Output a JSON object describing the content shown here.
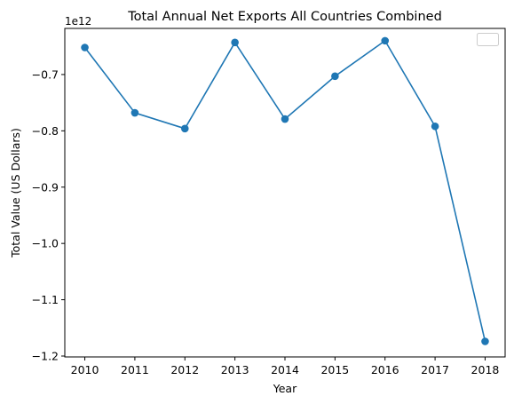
{
  "chart_data": {
    "type": "line",
    "title": "Total Annual Net Exports All Countries Combined",
    "xlabel": "Year",
    "ylabel": "Total Value (US Dollars)",
    "y_offset_label": "1e12",
    "x": [
      2010,
      2011,
      2012,
      2013,
      2014,
      2015,
      2016,
      2017,
      2018
    ],
    "x_tick_labels": [
      "2010",
      "2011",
      "2012",
      "2013",
      "2014",
      "2015",
      "2016",
      "2017",
      "2018"
    ],
    "y_ticks": [
      -0.7,
      -0.8,
      -0.9,
      -1.0,
      -1.1,
      -1.2
    ],
    "y_tick_labels": [
      "−0.7",
      "−0.8",
      "−0.9",
      "−1.0",
      "−1.1",
      "−1.2"
    ],
    "y_scale_multiplier": 1000000000000.0,
    "series": [
      {
        "values": [
          -0.652,
          -0.768,
          -0.796,
          -0.643,
          -0.779,
          -0.703,
          -0.64,
          -0.792,
          -1.174
        ],
        "color": "#1f77b4",
        "marker": "circle"
      }
    ],
    "xlim": [
      2009.6,
      2018.4
    ],
    "ylim": [
      -1.2016,
      -0.6181
    ],
    "grid": false,
    "legend": "top-right (empty)"
  }
}
